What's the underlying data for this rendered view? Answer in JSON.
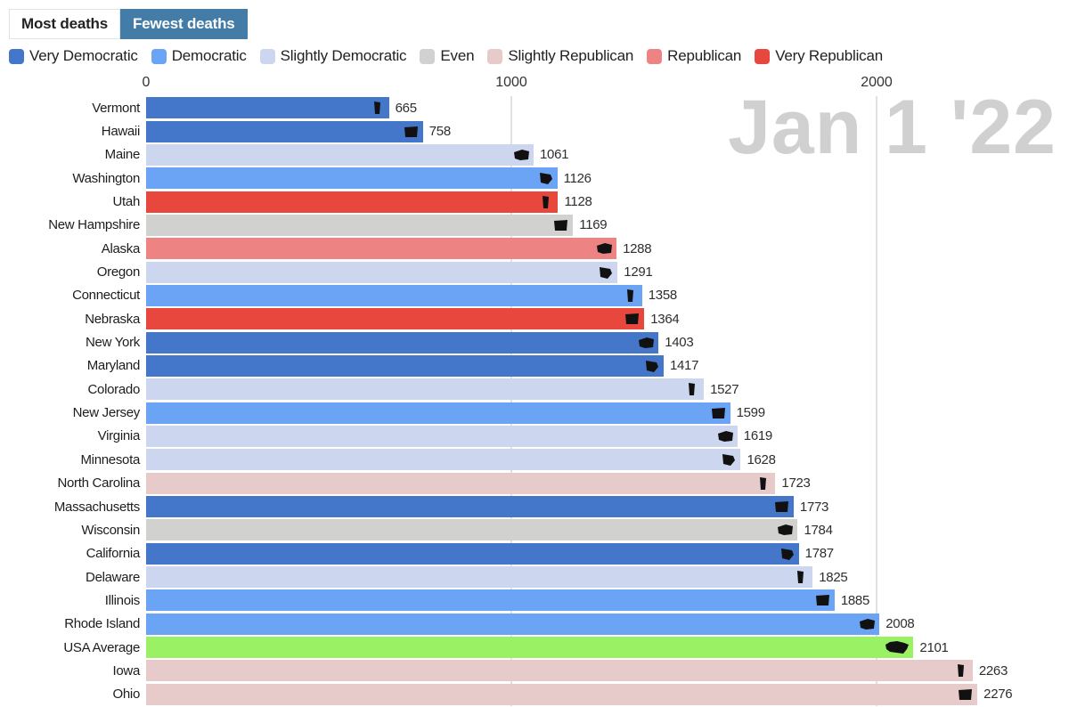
{
  "toggle": {
    "options": [
      {
        "label": "Most deaths",
        "selected": false
      },
      {
        "label": "Fewest deaths",
        "selected": true
      }
    ]
  },
  "legend": {
    "items": [
      {
        "label": "Very Democratic",
        "key": "very_dem"
      },
      {
        "label": "Democratic",
        "key": "dem"
      },
      {
        "label": "Slightly Democratic",
        "key": "slight_dem"
      },
      {
        "label": "Even",
        "key": "even"
      },
      {
        "label": "Slightly Republican",
        "key": "slight_rep"
      },
      {
        "label": "Republican",
        "key": "rep"
      },
      {
        "label": "Very Republican",
        "key": "very_rep"
      }
    ]
  },
  "colors": {
    "very_dem": "#4476c9",
    "dem": "#6ba3f5",
    "slight_dem": "#ccd6ee",
    "even": "#d1d1cf",
    "slight_rep": "#e7caca",
    "rep": "#ee8383",
    "very_rep": "#e8473d",
    "usa_avg": "#9bf164",
    "toggle_selected": "#447ca8",
    "watermark": "#d0d0d0",
    "gridline": "#e1e1e1"
  },
  "watermark": {
    "date_label": "Jan 1 '22"
  },
  "chart_data": {
    "type": "bar",
    "orientation": "horizontal",
    "title": "",
    "xlabel": "",
    "ylabel": "",
    "axis_ticks": [
      0,
      1000,
      2000
    ],
    "gridlines": [
      1000,
      2000
    ],
    "xlim": [
      0,
      2520
    ],
    "legend_position": "top",
    "rows": [
      {
        "label": "Vermont",
        "value": 665,
        "category": "very_dem",
        "icon": "vermont-state-icon"
      },
      {
        "label": "Hawaii",
        "value": 758,
        "category": "very_dem",
        "icon": "hawaii-state-icon"
      },
      {
        "label": "Maine",
        "value": 1061,
        "category": "slight_dem",
        "icon": "maine-state-icon"
      },
      {
        "label": "Washington",
        "value": 1126,
        "category": "dem",
        "icon": "washington-state-icon"
      },
      {
        "label": "Utah",
        "value": 1128,
        "category": "very_rep",
        "icon": "utah-state-icon"
      },
      {
        "label": "New Hampshire",
        "value": 1169,
        "category": "even",
        "icon": "new-hampshire-state-icon"
      },
      {
        "label": "Alaska",
        "value": 1288,
        "category": "rep",
        "icon": "alaska-state-icon"
      },
      {
        "label": "Oregon",
        "value": 1291,
        "category": "slight_dem",
        "icon": "oregon-state-icon"
      },
      {
        "label": "Connecticut",
        "value": 1358,
        "category": "dem",
        "icon": "connecticut-state-icon"
      },
      {
        "label": "Nebraska",
        "value": 1364,
        "category": "very_rep",
        "icon": "nebraska-state-icon"
      },
      {
        "label": "New York",
        "value": 1403,
        "category": "very_dem",
        "icon": "new-york-state-icon"
      },
      {
        "label": "Maryland",
        "value": 1417,
        "category": "very_dem",
        "icon": "maryland-state-icon"
      },
      {
        "label": "Colorado",
        "value": 1527,
        "category": "slight_dem",
        "icon": "colorado-state-icon"
      },
      {
        "label": "New Jersey",
        "value": 1599,
        "category": "dem",
        "icon": "new-jersey-state-icon"
      },
      {
        "label": "Virginia",
        "value": 1619,
        "category": "slight_dem",
        "icon": "virginia-state-icon"
      },
      {
        "label": "Minnesota",
        "value": 1628,
        "category": "slight_dem",
        "icon": "minnesota-state-icon"
      },
      {
        "label": "North Carolina",
        "value": 1723,
        "category": "slight_rep",
        "icon": "north-carolina-state-icon"
      },
      {
        "label": "Massachusetts",
        "value": 1773,
        "category": "very_dem",
        "icon": "massachusetts-state-icon"
      },
      {
        "label": "Wisconsin",
        "value": 1784,
        "category": "even",
        "icon": "wisconsin-state-icon"
      },
      {
        "label": "California",
        "value": 1787,
        "category": "very_dem",
        "icon": "california-state-icon"
      },
      {
        "label": "Delaware",
        "value": 1825,
        "category": "slight_dem",
        "icon": "delaware-state-icon"
      },
      {
        "label": "Illinois",
        "value": 1885,
        "category": "dem",
        "icon": "illinois-state-icon"
      },
      {
        "label": "Rhode Island",
        "value": 2008,
        "category": "dem",
        "icon": "rhode-island-state-icon"
      },
      {
        "label": "USA Average",
        "value": 2101,
        "category": "usa_avg",
        "icon": "usa-map-icon"
      },
      {
        "label": "Iowa",
        "value": 2263,
        "category": "slight_rep",
        "icon": "iowa-state-icon"
      },
      {
        "label": "Ohio",
        "value": 2276,
        "category": "slight_rep",
        "icon": "ohio-state-icon"
      }
    ]
  }
}
